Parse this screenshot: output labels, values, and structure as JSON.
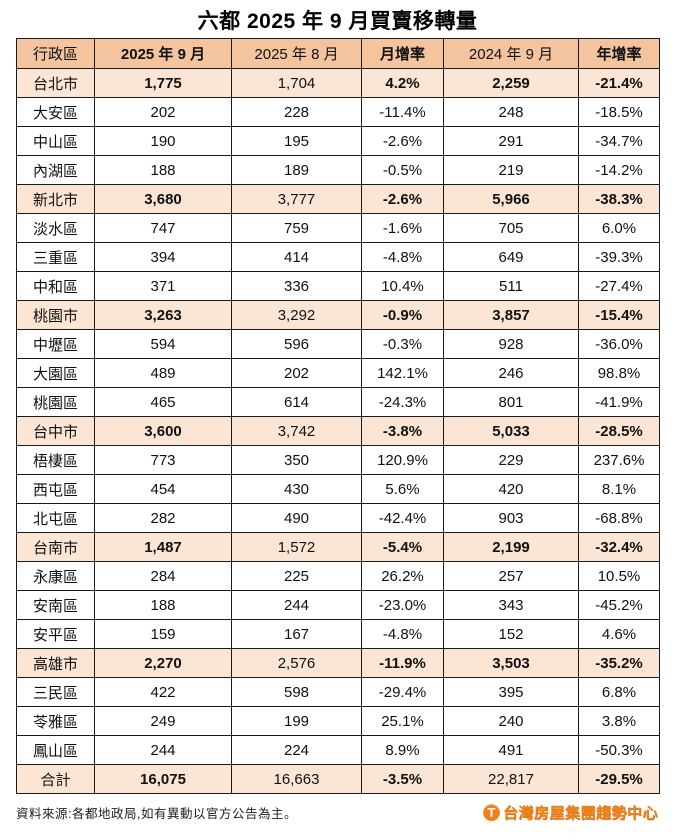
{
  "title": "六都 2025 年 9 月買賣移轉量",
  "chart_data": {
    "type": "table",
    "title": "六都 2025 年 9 月買賣移轉量",
    "columns": [
      "行政區",
      "2025 年 9 月",
      "2025 年 8 月",
      "月增率",
      "2024 年 9 月",
      "年增率"
    ],
    "rows": [
      {
        "style": "city",
        "cells": [
          "台北市",
          "1,775",
          "1,704",
          "4.2%",
          "2,259",
          "-21.4%"
        ]
      },
      {
        "style": "district",
        "cells": [
          "大安區",
          "202",
          "228",
          "-11.4%",
          "248",
          "-18.5%"
        ]
      },
      {
        "style": "district",
        "cells": [
          "中山區",
          "190",
          "195",
          "-2.6%",
          "291",
          "-34.7%"
        ]
      },
      {
        "style": "district",
        "cells": [
          "內湖區",
          "188",
          "189",
          "-0.5%",
          "219",
          "-14.2%"
        ]
      },
      {
        "style": "city",
        "cells": [
          "新北市",
          "3,680",
          "3,777",
          "-2.6%",
          "5,966",
          "-38.3%"
        ]
      },
      {
        "style": "district",
        "cells": [
          "淡水區",
          "747",
          "759",
          "-1.6%",
          "705",
          "6.0%"
        ]
      },
      {
        "style": "district",
        "cells": [
          "三重區",
          "394",
          "414",
          "-4.8%",
          "649",
          "-39.3%"
        ]
      },
      {
        "style": "district",
        "cells": [
          "中和區",
          "371",
          "336",
          "10.4%",
          "511",
          "-27.4%"
        ]
      },
      {
        "style": "city",
        "cells": [
          "桃園市",
          "3,263",
          "3,292",
          "-0.9%",
          "3,857",
          "-15.4%"
        ]
      },
      {
        "style": "district",
        "cells": [
          "中壢區",
          "594",
          "596",
          "-0.3%",
          "928",
          "-36.0%"
        ]
      },
      {
        "style": "district",
        "cells": [
          "大園區",
          "489",
          "202",
          "142.1%",
          "246",
          "98.8%"
        ]
      },
      {
        "style": "district",
        "cells": [
          "桃園區",
          "465",
          "614",
          "-24.3%",
          "801",
          "-41.9%"
        ]
      },
      {
        "style": "city",
        "cells": [
          "台中市",
          "3,600",
          "3,742",
          "-3.8%",
          "5,033",
          "-28.5%"
        ]
      },
      {
        "style": "district",
        "cells": [
          "梧棲區",
          "773",
          "350",
          "120.9%",
          "229",
          "237.6%"
        ]
      },
      {
        "style": "district",
        "cells": [
          "西屯區",
          "454",
          "430",
          "5.6%",
          "420",
          "8.1%"
        ]
      },
      {
        "style": "district",
        "cells": [
          "北屯區",
          "282",
          "490",
          "-42.4%",
          "903",
          "-68.8%"
        ]
      },
      {
        "style": "city",
        "cells": [
          "台南市",
          "1,487",
          "1,572",
          "-5.4%",
          "2,199",
          "-32.4%"
        ]
      },
      {
        "style": "district",
        "cells": [
          "永康區",
          "284",
          "225",
          "26.2%",
          "257",
          "10.5%"
        ]
      },
      {
        "style": "district",
        "cells": [
          "安南區",
          "188",
          "244",
          "-23.0%",
          "343",
          "-45.2%"
        ]
      },
      {
        "style": "district",
        "cells": [
          "安平區",
          "159",
          "167",
          "-4.8%",
          "152",
          "4.6%"
        ]
      },
      {
        "style": "city",
        "cells": [
          "高雄市",
          "2,270",
          "2,576",
          "-11.9%",
          "3,503",
          "-35.2%"
        ]
      },
      {
        "style": "district",
        "cells": [
          "三民區",
          "422",
          "598",
          "-29.4%",
          "395",
          "6.8%"
        ]
      },
      {
        "style": "district",
        "cells": [
          "苓雅區",
          "249",
          "199",
          "25.1%",
          "240",
          "3.8%"
        ]
      },
      {
        "style": "district",
        "cells": [
          "鳳山區",
          "244",
          "224",
          "8.9%",
          "491",
          "-50.3%"
        ]
      },
      {
        "style": "total",
        "cells": [
          "合計",
          "16,075",
          "16,663",
          "-3.5%",
          "22,817",
          "-29.5%"
        ]
      }
    ]
  },
  "footer": {
    "source_note": "資料來源:各都地政局,如有異動以官方公告為主。",
    "logo_text": "台灣房屋集團趨勢中心",
    "logo_icon": "T"
  },
  "colors": {
    "header_bg": "#F3C49E",
    "highlight_bg": "#FBE5D5",
    "border": "#1a1a1a",
    "text": "#111111",
    "logo_orange": "#F08119"
  }
}
